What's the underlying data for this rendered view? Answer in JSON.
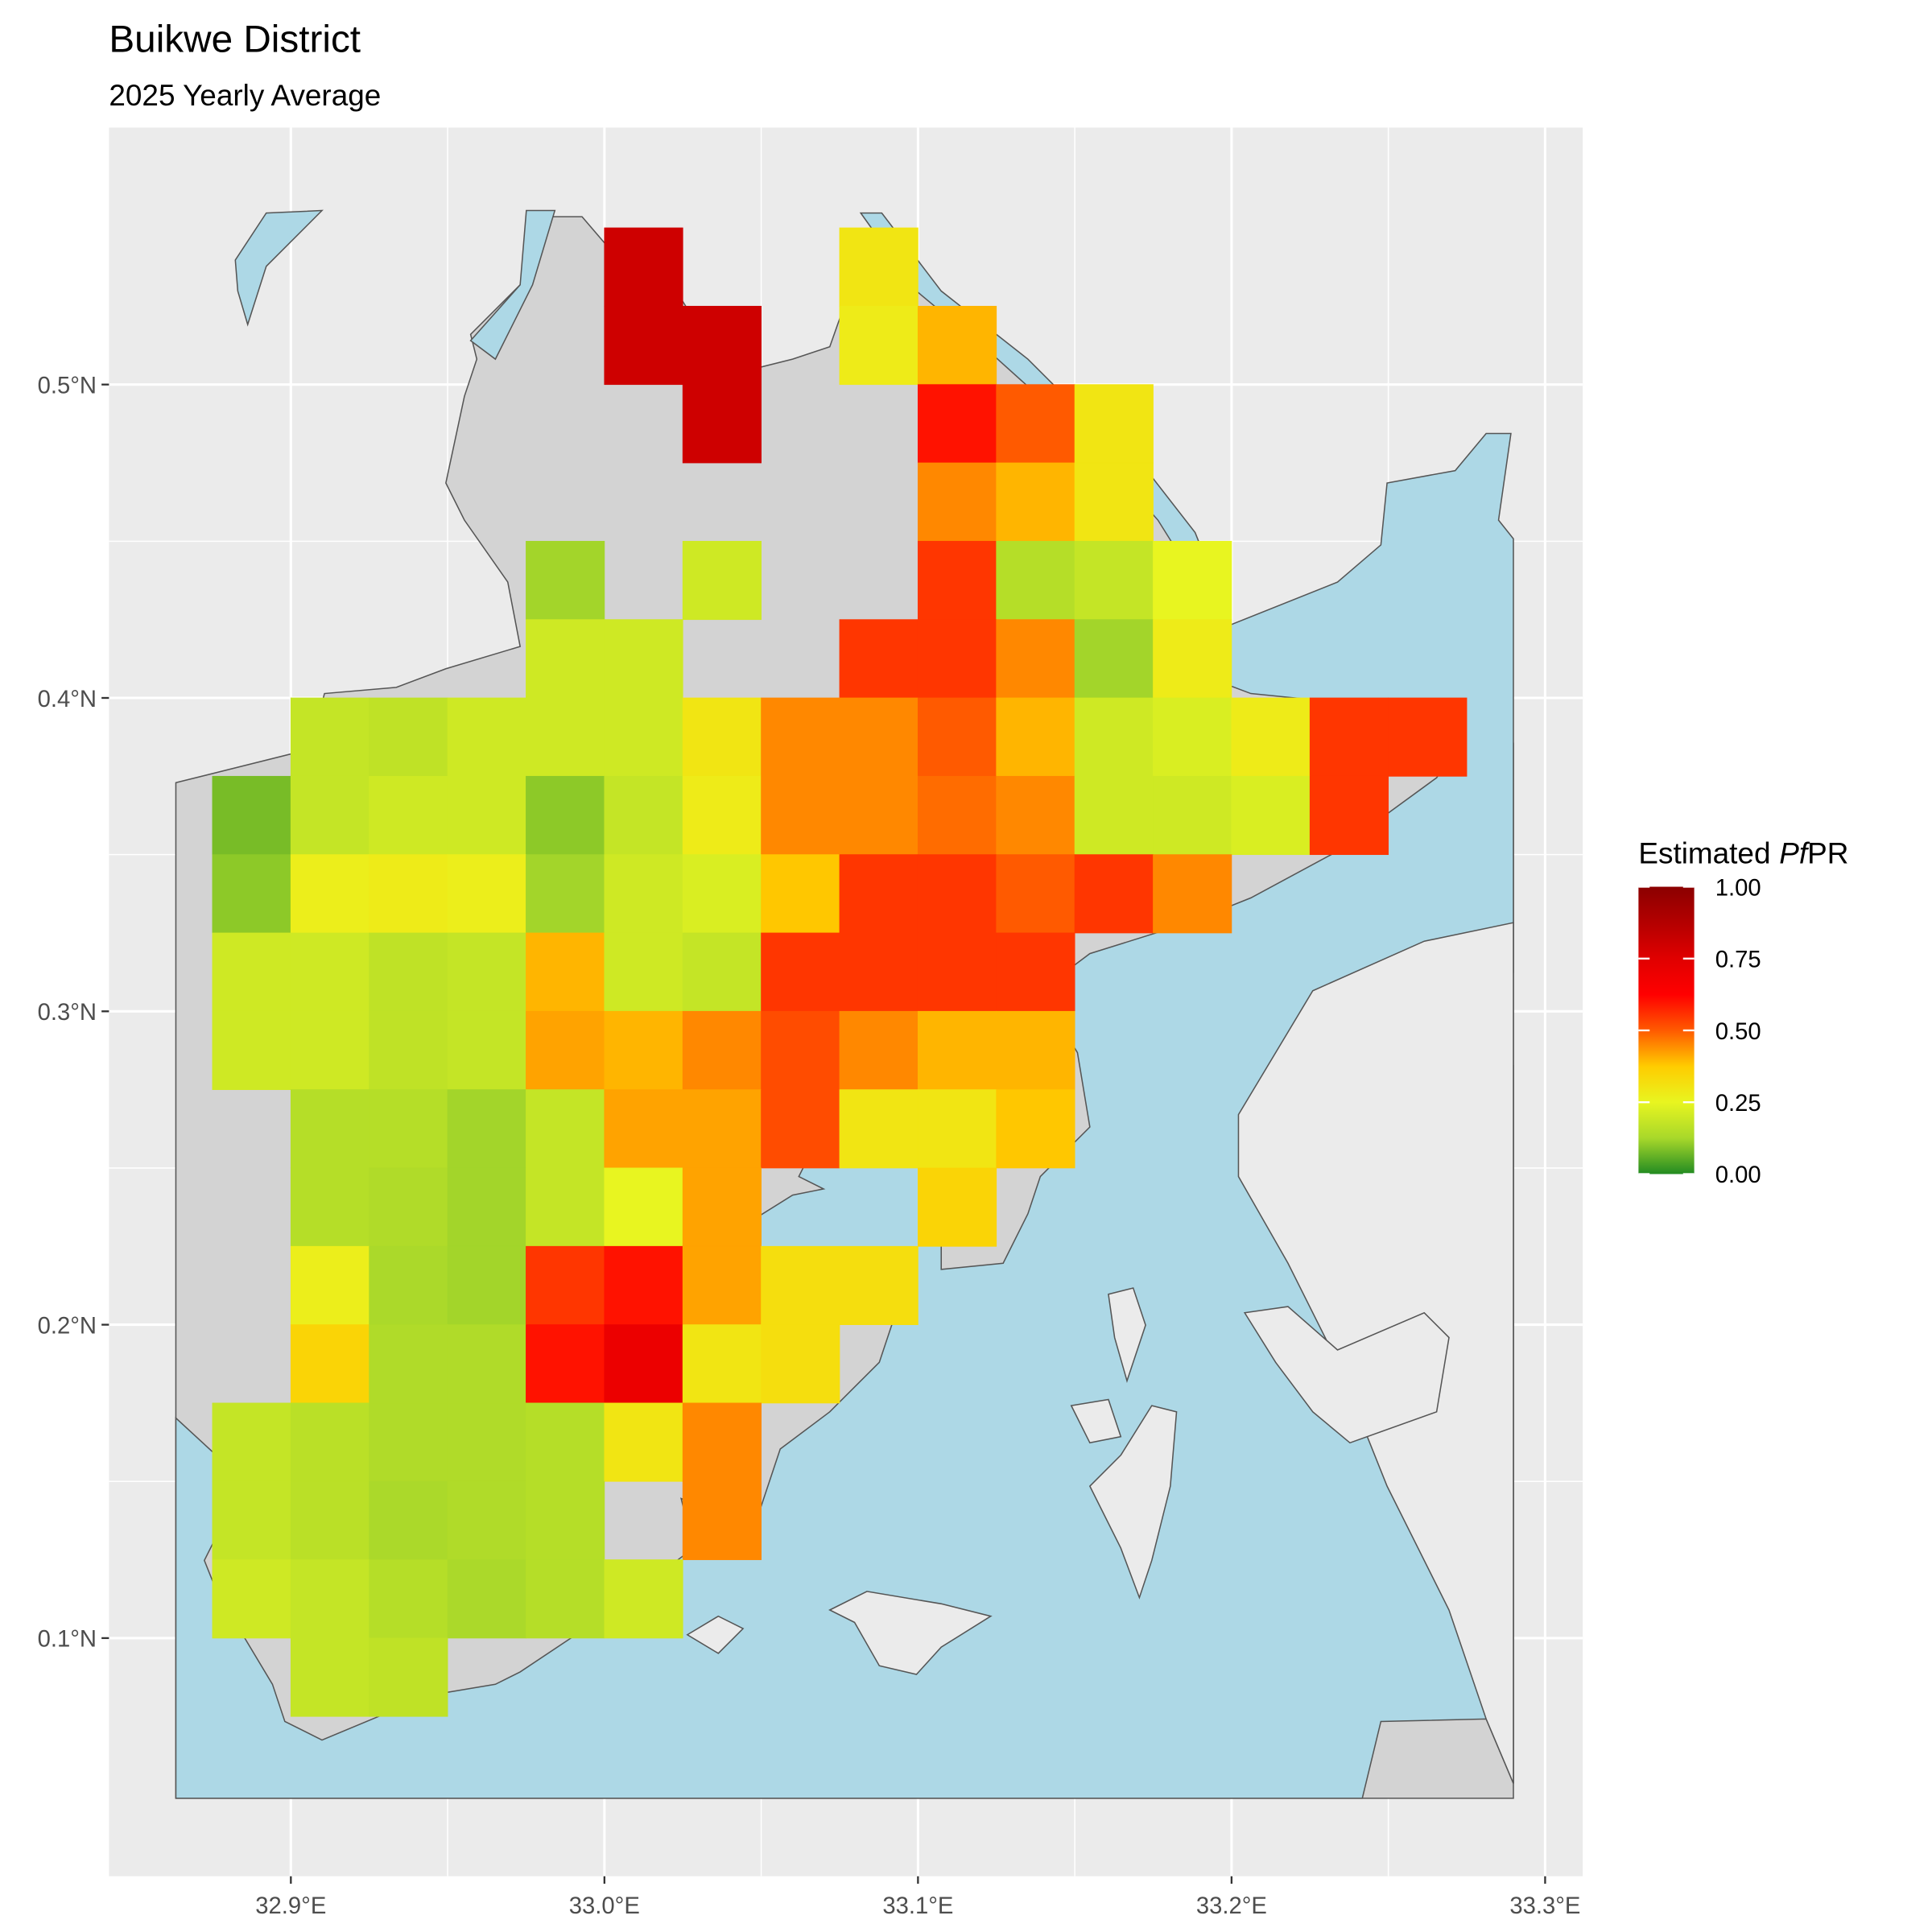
{
  "chart_data": {
    "type": "raster",
    "title": "Buikwe District",
    "subtitle": "2025 Yearly Average",
    "lon": [
      32.8875,
      32.9125,
      32.9375,
      32.9625,
      32.9875,
      33.0125,
      33.0375,
      33.0625,
      33.0875,
      33.1125,
      33.1375,
      33.1625,
      33.1875,
      33.2125,
      33.2375,
      33.2625
    ],
    "lat": [
      0.5375,
      0.5125,
      0.4875,
      0.4625,
      0.4375,
      0.4125,
      0.3875,
      0.3625,
      0.3375,
      0.3125,
      0.2875,
      0.2625,
      0.2375,
      0.2125,
      0.1875,
      0.1625,
      0.1375,
      0.1125,
      0.0875
    ],
    "values": [
      [
        null,
        null,
        null,
        null,
        null,
        0.8,
        null,
        null,
        0.3,
        null,
        null,
        null,
        null,
        null,
        null,
        null
      ],
      [
        null,
        null,
        null,
        null,
        null,
        0.8,
        0.8,
        null,
        0.28,
        0.4,
        null,
        null,
        null,
        null,
        null,
        null
      ],
      [
        null,
        null,
        null,
        null,
        null,
        null,
        0.8,
        null,
        null,
        0.6,
        0.5,
        0.3,
        null,
        null,
        null,
        null
      ],
      [
        null,
        null,
        null,
        null,
        null,
        null,
        null,
        null,
        null,
        0.45,
        0.4,
        0.3,
        null,
        null,
        null,
        null
      ],
      [
        null,
        null,
        null,
        null,
        0.12,
        null,
        0.2,
        null,
        null,
        0.55,
        0.15,
        0.18,
        0.25,
        null,
        null,
        null
      ],
      [
        null,
        null,
        null,
        null,
        0.2,
        0.2,
        null,
        null,
        0.55,
        0.55,
        0.45,
        0.12,
        0.28,
        null,
        null,
        null
      ],
      [
        null,
        0.18,
        0.17,
        0.2,
        0.2,
        0.2,
        0.3,
        0.45,
        0.45,
        0.5,
        0.4,
        0.2,
        0.22,
        0.28,
        0.55,
        0.55
      ],
      [
        0.08,
        0.18,
        0.2,
        0.2,
        0.1,
        0.18,
        0.28,
        0.45,
        0.45,
        0.48,
        0.45,
        0.2,
        0.2,
        0.22,
        0.55,
        null
      ],
      [
        0.1,
        0.27,
        0.28,
        0.27,
        0.12,
        0.2,
        0.22,
        0.38,
        0.55,
        0.55,
        0.5,
        0.55,
        0.45,
        null,
        null,
        null
      ],
      [
        0.2,
        0.2,
        0.17,
        0.18,
        0.4,
        0.2,
        0.18,
        0.55,
        0.55,
        0.55,
        0.55,
        null,
        null,
        null,
        null,
        null
      ],
      [
        0.2,
        0.2,
        0.17,
        0.18,
        0.42,
        0.4,
        0.45,
        0.52,
        0.45,
        0.4,
        0.4,
        null,
        null,
        null,
        null,
        null
      ],
      [
        null,
        0.15,
        0.15,
        0.12,
        0.18,
        0.42,
        0.42,
        0.52,
        0.3,
        0.3,
        0.38,
        null,
        null,
        null,
        null,
        null
      ],
      [
        null,
        0.15,
        0.14,
        0.12,
        0.18,
        0.25,
        0.42,
        null,
        null,
        0.35,
        null,
        null,
        null,
        null,
        null,
        null
      ],
      [
        null,
        0.27,
        0.13,
        0.12,
        0.55,
        0.6,
        0.42,
        0.32,
        0.32,
        null,
        null,
        null,
        null,
        null,
        null,
        null
      ],
      [
        null,
        0.35,
        0.14,
        0.14,
        0.6,
        0.7,
        0.3,
        0.32,
        null,
        null,
        null,
        null,
        null,
        null,
        null,
        null
      ],
      [
        0.18,
        0.16,
        0.14,
        0.14,
        0.15,
        0.3,
        0.45,
        null,
        null,
        null,
        null,
        null,
        null,
        null,
        null,
        null
      ],
      [
        0.18,
        0.16,
        0.13,
        0.14,
        0.15,
        null,
        0.45,
        null,
        null,
        null,
        null,
        null,
        null,
        null,
        null,
        null
      ],
      [
        0.2,
        0.18,
        0.15,
        0.13,
        0.15,
        0.2,
        null,
        null,
        null,
        null,
        null,
        null,
        null,
        null,
        null,
        null
      ],
      [
        null,
        0.18,
        0.17,
        null,
        null,
        null,
        null,
        null,
        null,
        null,
        null,
        null,
        null,
        null,
        null,
        null
      ]
    ],
    "xlim": [
      32.842,
      33.312
    ],
    "ylim": [
      0.024,
      0.582
    ],
    "xticks": [
      {
        "value": 32.9,
        "label": "32.9°E"
      },
      {
        "value": 33.0,
        "label": "33.0°E"
      },
      {
        "value": 33.1,
        "label": "33.1°E"
      },
      {
        "value": 33.2,
        "label": "33.2°E"
      },
      {
        "value": 33.3,
        "label": "33.3°E"
      }
    ],
    "yticks": [
      {
        "value": 0.1,
        "label": "0.1°N"
      },
      {
        "value": 0.2,
        "label": "0.2°N"
      },
      {
        "value": 0.3,
        "label": "0.3°N"
      },
      {
        "value": 0.4,
        "label": "0.4°N"
      },
      {
        "value": 0.5,
        "label": "0.5°N"
      }
    ],
    "grid": true,
    "legend": {
      "position": "right",
      "title_parts": [
        "Estimated",
        "Pf",
        "PR"
      ],
      "ticks": [
        {
          "value": 0,
          "label": "0.00"
        },
        {
          "value": 0.25,
          "label": "0.25"
        },
        {
          "value": 0.5,
          "label": "0.50"
        },
        {
          "value": 0.75,
          "label": "0.75"
        },
        {
          "value": 1,
          "label": "1.00"
        }
      ],
      "colors": [
        "#228b22",
        "#a8d82a",
        "#e8f520",
        "#ffcc00",
        "#ff5a00",
        "#ff0000",
        "#e00000",
        "#b40000",
        "#8b0000"
      ]
    }
  }
}
